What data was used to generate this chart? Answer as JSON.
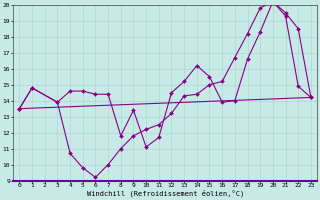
{
  "xlabel": "Windchill (Refroidissement éolien,°C)",
  "bg_color": "#c8eae6",
  "line_color": "#880088",
  "grid_color": "#aad8d4",
  "xlim": [
    -0.5,
    23.5
  ],
  "ylim": [
    9,
    20
  ],
  "xticks": [
    0,
    1,
    2,
    3,
    4,
    5,
    6,
    7,
    8,
    9,
    10,
    11,
    12,
    13,
    14,
    15,
    16,
    17,
    18,
    19,
    20,
    21,
    22,
    23
  ],
  "yticks": [
    9,
    10,
    11,
    12,
    13,
    14,
    15,
    16,
    17,
    18,
    19,
    20
  ],
  "line1_x": [
    0,
    1,
    3,
    4,
    5,
    6,
    7,
    8,
    9,
    10,
    11,
    12,
    13,
    14,
    15,
    16,
    17,
    18,
    19,
    20,
    21,
    22,
    23
  ],
  "line1_y": [
    13.5,
    14.8,
    13.9,
    14.6,
    14.6,
    14.4,
    14.4,
    11.8,
    13.4,
    11.1,
    11.7,
    14.5,
    15.2,
    16.2,
    15.5,
    13.9,
    14.0,
    16.6,
    18.3,
    20.2,
    19.5,
    18.5,
    14.2
  ],
  "line2_x": [
    0,
    1,
    3,
    4,
    5,
    6,
    7,
    8,
    9,
    10,
    11,
    12,
    13,
    14,
    15,
    16,
    17,
    18,
    19,
    20,
    21,
    22,
    23
  ],
  "line2_y": [
    13.5,
    14.8,
    13.9,
    10.7,
    9.8,
    9.2,
    10.0,
    11.0,
    11.8,
    12.2,
    12.5,
    13.2,
    14.3,
    14.4,
    15.0,
    15.2,
    16.7,
    18.2,
    19.8,
    20.2,
    19.3,
    14.9,
    14.2
  ],
  "line3_x": [
    0,
    23
  ],
  "line3_y": [
    13.5,
    14.2
  ]
}
